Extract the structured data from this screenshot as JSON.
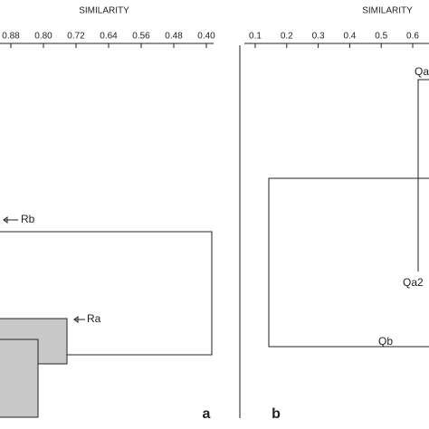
{
  "panels": [
    {
      "axis_title": "SIMILARITY",
      "ticks": [
        "0.88",
        "0.80",
        "0.72",
        "0.64",
        "0.56",
        "0.48",
        "0.40"
      ],
      "labels": [
        "Rb",
        "Ra"
      ],
      "letter": "a"
    },
    {
      "axis_title": "SIMILARITY",
      "ticks": [
        "0.1",
        "0.2",
        "0.3",
        "0.4",
        "0.5",
        "0.6"
      ],
      "labels": [
        "Qa",
        "Qa2",
        "Qb"
      ],
      "letter": "b"
    }
  ]
}
